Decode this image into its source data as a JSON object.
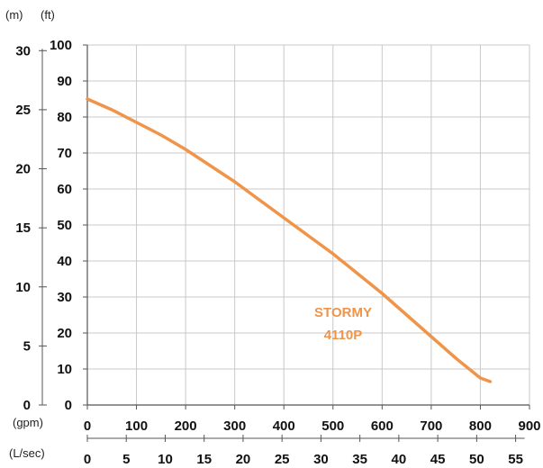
{
  "units": {
    "m": "(m)",
    "ft": "(ft)",
    "gpm": "(gpm)",
    "lsec": "(L/sec)"
  },
  "colors": {
    "series": "#f0944a",
    "grid": "#c8c8c8",
    "axis": "#555555"
  },
  "chart_data": {
    "type": "line",
    "grid": true,
    "x": [
      0,
      50,
      100,
      150,
      200,
      250,
      300,
      350,
      400,
      450,
      500,
      550,
      600,
      650,
      700,
      750,
      800,
      820
    ],
    "xlim": [
      0,
      900
    ],
    "xticks": [
      "0",
      "100",
      "200",
      "300",
      "400",
      "500",
      "600",
      "700",
      "800",
      "900"
    ],
    "ylim": [
      0,
      100
    ],
    "yticks_ft": [
      "0",
      "10",
      "20",
      "30",
      "40",
      "50",
      "60",
      "70",
      "80",
      "90",
      "100"
    ],
    "yticks_m": [
      "0",
      "5",
      "10",
      "15",
      "20",
      "25",
      "30"
    ],
    "m_values": [
      0,
      5,
      10,
      15,
      20,
      25,
      30
    ],
    "lsec_ticks": [
      "0",
      "5",
      "10",
      "15",
      "20",
      "25",
      "30",
      "35",
      "40",
      "45",
      "50",
      "55"
    ],
    "lsec_values": [
      0,
      5,
      10,
      15,
      20,
      25,
      30,
      35,
      40,
      45,
      50,
      55
    ],
    "series": [
      {
        "name": "STORMY 4110P",
        "name_lines": [
          "STORMY",
          "4110P"
        ],
        "values": [
          85,
          82,
          78.5,
          75,
          71,
          66.5,
          62,
          57,
          52,
          47,
          42,
          36.5,
          31,
          25,
          19,
          13,
          7.5,
          6.5
        ]
      }
    ]
  }
}
